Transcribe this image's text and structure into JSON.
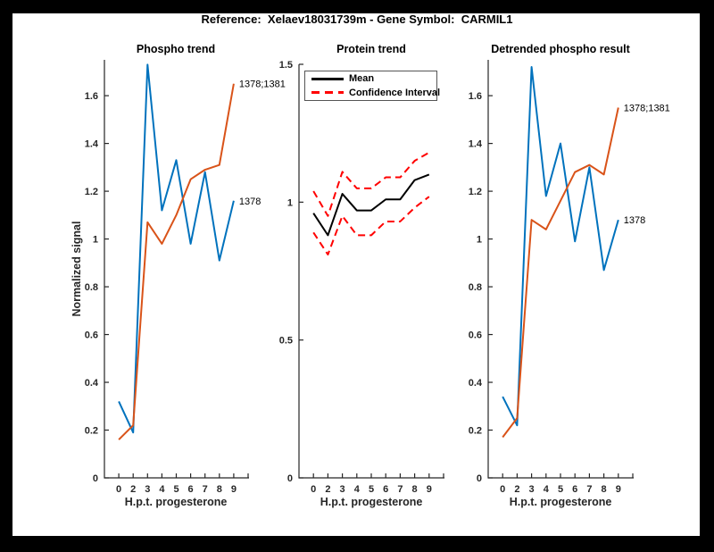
{
  "figure": {
    "title": "Reference:  Xelaev18031739m - Gene Symbol:  CARMIL1",
    "background_color": "#000000",
    "paper_color": "#FFFFFF",
    "axis_color": "#262626"
  },
  "chart_data": [
    {
      "type": "line",
      "title": "Phospho trend",
      "xlabel": "H.p.t. progesterone",
      "ylabel": "Normalized signal",
      "xticklabels": [
        "0",
        "2",
        "3",
        "4",
        "5",
        "6",
        "7",
        "8",
        "9"
      ],
      "yticks": [
        0,
        0.2,
        0.4,
        0.6,
        0.8,
        1,
        1.2,
        1.4,
        1.6
      ],
      "ylim": [
        0,
        1.75
      ],
      "grid": false,
      "series": [
        {
          "name": "1378",
          "color": "#0072BD",
          "style": "solid",
          "annotate": true,
          "values": [
            0.32,
            0.19,
            1.73,
            1.12,
            1.33,
            0.98,
            1.28,
            0.91,
            1.16
          ]
        },
        {
          "name": "1378;1381",
          "color": "#D95319",
          "style": "solid",
          "annotate": true,
          "values": [
            0.16,
            0.22,
            1.07,
            0.98,
            1.1,
            1.25,
            1.29,
            1.31,
            1.65
          ]
        }
      ]
    },
    {
      "type": "line",
      "title": "Protein trend",
      "xlabel": "H.p.t. progesterone",
      "ylabel": "",
      "xticklabels": [
        "0",
        "2",
        "3",
        "4",
        "5",
        "6",
        "7",
        "8",
        "9"
      ],
      "yticks": [
        0,
        0.5,
        1,
        1.5
      ],
      "ylim": [
        0,
        1.5
      ],
      "grid": false,
      "legend": [
        "Mean",
        "Confidence Interval"
      ],
      "legend_position": "top-left",
      "series": [
        {
          "name": "Confidence Interval upper",
          "color": "#FF0000",
          "style": "dashed",
          "values": [
            1.04,
            0.95,
            1.11,
            1.05,
            1.05,
            1.09,
            1.09,
            1.15,
            1.18
          ]
        },
        {
          "name": "Confidence Interval lower",
          "color": "#FF0000",
          "style": "dashed",
          "values": [
            0.89,
            0.81,
            0.95,
            0.88,
            0.88,
            0.93,
            0.93,
            0.98,
            1.02
          ]
        },
        {
          "name": "Mean",
          "color": "#000000",
          "style": "solid",
          "values": [
            0.96,
            0.88,
            1.03,
            0.97,
            0.97,
            1.01,
            1.01,
            1.08,
            1.1
          ]
        }
      ]
    },
    {
      "type": "line",
      "title": "Detrended phospho result",
      "xlabel": "H.p.t. progesterone",
      "ylabel": "",
      "xticklabels": [
        "0",
        "2",
        "3",
        "4",
        "5",
        "6",
        "7",
        "8",
        "9"
      ],
      "yticks": [
        0,
        0.2,
        0.4,
        0.6,
        0.8,
        1,
        1.2,
        1.4,
        1.6
      ],
      "ylim": [
        0,
        1.75
      ],
      "grid": false,
      "series": [
        {
          "name": "1378",
          "color": "#0072BD",
          "style": "solid",
          "annotate": true,
          "values": [
            0.34,
            0.22,
            1.72,
            1.18,
            1.4,
            0.99,
            1.3,
            0.87,
            1.08
          ]
        },
        {
          "name": "1378;1381",
          "color": "#D95319",
          "style": "solid",
          "annotate": true,
          "values": [
            0.17,
            0.25,
            1.08,
            1.04,
            1.16,
            1.28,
            1.31,
            1.27,
            1.55
          ]
        }
      ]
    }
  ]
}
